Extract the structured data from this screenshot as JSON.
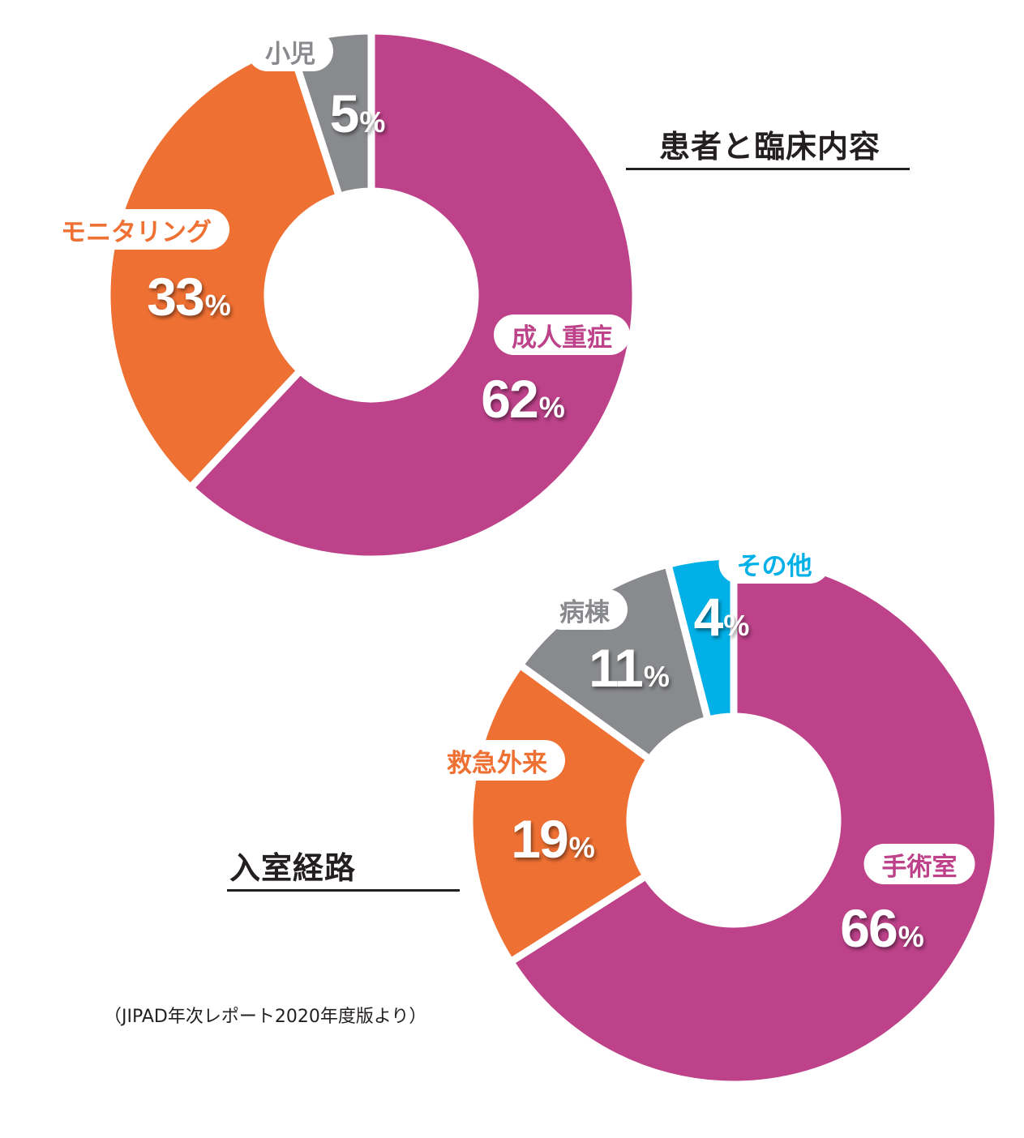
{
  "source_note": "（JIPAD年次レポート2020年度版より）",
  "chart_data": [
    {
      "type": "pie",
      "title": "患者と臨床内容",
      "categories": [
        "成人重症",
        "モニタリング",
        "小児"
      ],
      "values": [
        62,
        33,
        5
      ],
      "value_labels": [
        "62",
        "33",
        "5"
      ],
      "unit": "%",
      "colors": [
        "#bd428a",
        "#ef7033",
        "#898a8d"
      ],
      "label_colors": [
        "#bd428a",
        "#ef7033",
        "#898a8d"
      ]
    },
    {
      "type": "pie",
      "title": "入室経路",
      "categories": [
        "手術室",
        "救急外来",
        "病棟",
        "その他"
      ],
      "values": [
        66,
        19,
        11,
        4
      ],
      "value_labels": [
        "66",
        "19",
        "11",
        "4"
      ],
      "unit": "%",
      "colors": [
        "#bd428a",
        "#ef7033",
        "#898a8d",
        "#00b0e6"
      ],
      "label_colors": [
        "#bd428a",
        "#ef7033",
        "#898a8d",
        "#00b0e6"
      ]
    }
  ]
}
